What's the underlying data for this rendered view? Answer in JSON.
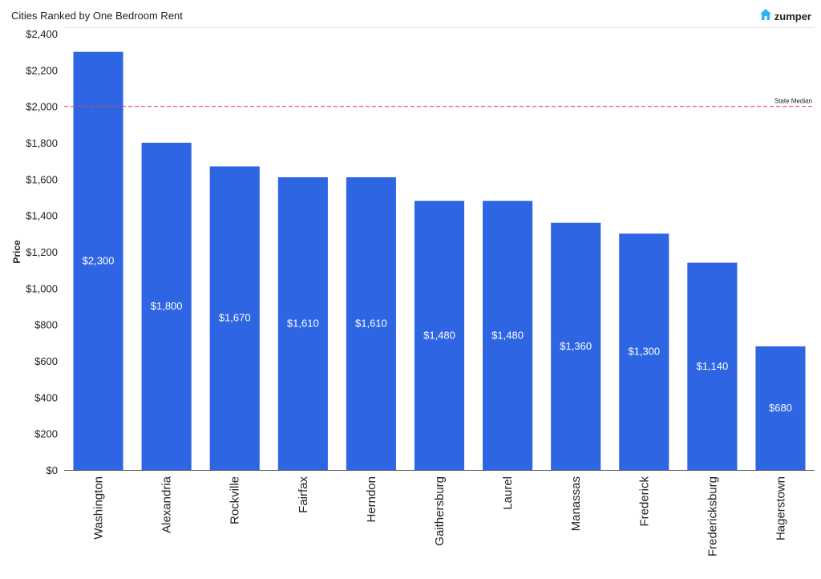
{
  "header": {
    "title": "Cities Ranked by One Bedroom Rent",
    "brand": "zumper",
    "brand_icon": "house-icon",
    "brand_color": "#2db3f0"
  },
  "chart_data": {
    "type": "bar",
    "title": "Cities Ranked by One Bedroom Rent",
    "xlabel": "",
    "ylabel": "Price",
    "categories": [
      "Washington",
      "Alexandria",
      "Rockville",
      "Fairfax",
      "Herndon",
      "Gaithersburg",
      "Laurel",
      "Manassas",
      "Frederick",
      "Fredericksburg",
      "Hagerstown"
    ],
    "values": [
      2300,
      1800,
      1670,
      1610,
      1610,
      1480,
      1480,
      1360,
      1300,
      1140,
      680
    ],
    "data_labels": [
      "$2,300",
      "$1,800",
      "$1,670",
      "$1,610",
      "$1,610",
      "$1,480",
      "$1,480",
      "$1,360",
      "$1,300",
      "$1,140",
      "$680"
    ],
    "ylim": [
      0,
      2400
    ],
    "yticks": [
      0,
      200,
      400,
      600,
      800,
      1000,
      1200,
      1400,
      1600,
      1800,
      2000,
      2200,
      2400
    ],
    "ytick_labels": [
      "$0",
      "$200",
      "$400",
      "$600",
      "$800",
      "$1,000",
      "$1,200",
      "$1,400",
      "$1,600",
      "$1,800",
      "$2,000",
      "$2,200",
      "$2,400"
    ],
    "grid": false,
    "bar_color": "#2e65e2",
    "reference_line": {
      "value": 2000,
      "label": "State Median",
      "color": "#e0474c"
    }
  }
}
